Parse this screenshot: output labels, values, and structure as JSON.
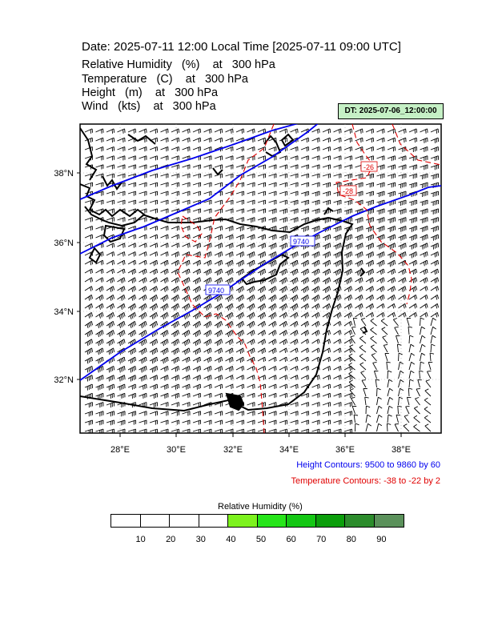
{
  "title": "Date: 2025-07-11  12:00 Local Time [2025-07-11  09:00 UTC]",
  "variables": [
    {
      "name": "Relative Humidity",
      "unit": "(%)",
      "level_prefix": "at",
      "level": "300 hPa"
    },
    {
      "name": "Temperature",
      "unit": "(C)",
      "level_prefix": "at",
      "level": "300 hPa"
    },
    {
      "name": "Height",
      "unit": "(m)",
      "level_prefix": "at",
      "level": "300 hPa"
    },
    {
      "name": "Wind",
      "unit": "(kts)",
      "level_prefix": "at",
      "level": "300 hPa"
    }
  ],
  "dt_badge": "DT: 2025-07-06_12:00:00",
  "map": {
    "lat_labels": [
      "38°N",
      "36°N",
      "34°N",
      "32°N"
    ],
    "lon_labels": [
      "28°E",
      "30°E",
      "32°E",
      "34°E",
      "36°E",
      "38°E"
    ],
    "height_contour_labels": [
      "9740",
      "9740"
    ],
    "temperature_contour_labels": [
      "-26",
      "-28"
    ],
    "colors": {
      "height": "#0000ee",
      "temperature": "#e00000",
      "coast": "#000000",
      "barbs": "#000000"
    }
  },
  "legend": {
    "height": "Height Contours: 9500 to 9860 by 60",
    "temperature": "Temperature Contours: -38 to -22 by 2"
  },
  "colorbar": {
    "title": "Relative Humidity  (%)",
    "colors": [
      "#ffffff",
      "#ffffff",
      "#ffffff",
      "#ffffff",
      "#7df21e",
      "#27e51a",
      "#14c714",
      "#0b9e0b",
      "#2c8c2c",
      "#5b915b"
    ],
    "labels": [
      "10",
      "20",
      "30",
      "40",
      "50",
      "60",
      "70",
      "80",
      "90"
    ]
  }
}
